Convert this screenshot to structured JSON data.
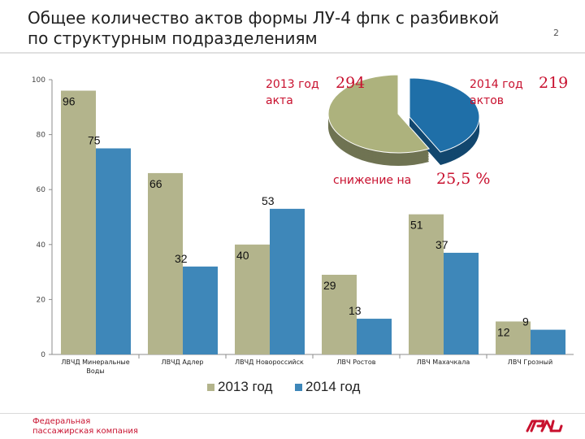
{
  "slide": {
    "title_line1": "Общее количество актов формы ЛУ-4 фпк с разбивкой",
    "title_line2": "по структурным подразделениям",
    "page_number": "2"
  },
  "chart_data": [
    {
      "type": "bar",
      "categories": [
        "ЛВЧД Минеральные Воды",
        "ЛВЧД Адлер",
        "ЛВЧД Новороссийск",
        "ЛВЧ Ростов",
        "ЛВЧ Махачкала",
        "ЛВЧ Грозный"
      ],
      "category_lines": [
        [
          "ЛВЧД Минеральные",
          "Воды"
        ],
        [
          "ЛВЧД Адлер"
        ],
        [
          "ЛВЧД Новороссийск"
        ],
        [
          "ЛВЧ Ростов"
        ],
        [
          "ЛВЧ Махачкала"
        ],
        [
          "ЛВЧ Грозный"
        ]
      ],
      "series": [
        {
          "name": "2013 год",
          "values": [
            96,
            66,
            40,
            29,
            51,
            12
          ],
          "color": "#b3b48c"
        },
        {
          "name": "2014 год",
          "values": [
            75,
            32,
            53,
            13,
            37,
            9
          ],
          "color": "#3e87b9"
        }
      ],
      "ylim": [
        0,
        100
      ],
      "yticks": [
        0,
        20,
        40,
        60,
        80,
        100
      ],
      "grid": false,
      "legend": "bottom"
    },
    {
      "type": "pie",
      "categories": [
        "2013 год",
        "2014 год"
      ],
      "values": [
        294,
        219
      ],
      "colors": [
        "#adb27d",
        "#1f6fa8"
      ],
      "labels": [
        {
          "text": "2013 год",
          "number": "294",
          "unit": "акта"
        },
        {
          "text": "2014 год",
          "number": "219",
          "unit": "актов"
        }
      ],
      "annotation": {
        "text": "снижение на",
        "number": "25,5 %"
      }
    }
  ],
  "footer": {
    "company_line1": "Федеральная",
    "company_line2": "пассажирская компания"
  }
}
